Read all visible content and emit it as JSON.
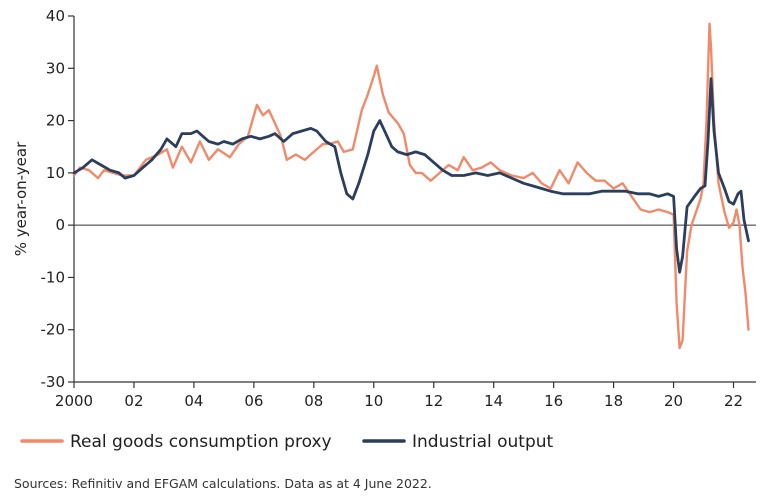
{
  "chart_data": {
    "type": "line",
    "title": "",
    "xlabel": "",
    "ylabel": "% year-on-year",
    "xlim": [
      2000,
      2022.75
    ],
    "ylim": [
      -30,
      40
    ],
    "yticks": [
      40,
      30,
      20,
      10,
      0,
      -10,
      -20,
      -30
    ],
    "ytick_labels": [
      "40",
      "30",
      "20",
      "10",
      "0",
      "-10",
      "-20",
      "-30"
    ],
    "xticks": [
      2000,
      2002,
      2004,
      2006,
      2008,
      2010,
      2012,
      2014,
      2016,
      2018,
      2020,
      2022
    ],
    "xtick_labels": [
      "2000",
      "02",
      "04",
      "06",
      "08",
      "10",
      "12",
      "14",
      "16",
      "18",
      "20",
      "22"
    ],
    "grid": false,
    "legend_position": "bottom-left",
    "series": [
      {
        "name": "Real goods consumption proxy",
        "color": "#f08a6a",
        "points": [
          [
            2000.0,
            9.5
          ],
          [
            2000.2,
            11.0
          ],
          [
            2000.5,
            10.5
          ],
          [
            2000.8,
            9.0
          ],
          [
            2001.0,
            10.5
          ],
          [
            2001.3,
            10.0
          ],
          [
            2001.6,
            9.5
          ],
          [
            2002.0,
            9.5
          ],
          [
            2002.4,
            12.5
          ],
          [
            2002.8,
            13.5
          ],
          [
            2003.1,
            14.5
          ],
          [
            2003.3,
            11.0
          ],
          [
            2003.6,
            15.0
          ],
          [
            2003.9,
            12.0
          ],
          [
            2004.2,
            16.0
          ],
          [
            2004.5,
            12.5
          ],
          [
            2004.8,
            14.5
          ],
          [
            2005.2,
            13.0
          ],
          [
            2005.5,
            15.5
          ],
          [
            2005.8,
            17.0
          ],
          [
            2006.1,
            23.0
          ],
          [
            2006.3,
            21.0
          ],
          [
            2006.5,
            22.0
          ],
          [
            2006.7,
            19.5
          ],
          [
            2006.9,
            17.0
          ],
          [
            2007.1,
            12.5
          ],
          [
            2007.4,
            13.5
          ],
          [
            2007.7,
            12.5
          ],
          [
            2008.0,
            14.0
          ],
          [
            2008.3,
            15.5
          ],
          [
            2008.5,
            15.5
          ],
          [
            2008.8,
            16.0
          ],
          [
            2009.0,
            14.0
          ],
          [
            2009.3,
            14.5
          ],
          [
            2009.6,
            22.0
          ],
          [
            2009.8,
            25.0
          ],
          [
            2010.0,
            28.5
          ],
          [
            2010.1,
            30.5
          ],
          [
            2010.3,
            25.0
          ],
          [
            2010.5,
            21.5
          ],
          [
            2010.8,
            19.5
          ],
          [
            2011.0,
            17.5
          ],
          [
            2011.2,
            11.5
          ],
          [
            2011.4,
            10.0
          ],
          [
            2011.6,
            10.0
          ],
          [
            2011.9,
            8.5
          ],
          [
            2012.2,
            10.0
          ],
          [
            2012.5,
            11.5
          ],
          [
            2012.8,
            10.5
          ],
          [
            2013.0,
            13.0
          ],
          [
            2013.3,
            10.5
          ],
          [
            2013.6,
            11.0
          ],
          [
            2013.9,
            12.0
          ],
          [
            2014.2,
            10.5
          ],
          [
            2014.6,
            9.5
          ],
          [
            2015.0,
            9.0
          ],
          [
            2015.3,
            10.0
          ],
          [
            2015.6,
            8.0
          ],
          [
            2015.9,
            7.0
          ],
          [
            2016.2,
            10.5
          ],
          [
            2016.5,
            8.0
          ],
          [
            2016.8,
            12.0
          ],
          [
            2017.1,
            10.0
          ],
          [
            2017.4,
            8.5
          ],
          [
            2017.7,
            8.5
          ],
          [
            2018.0,
            7.0
          ],
          [
            2018.3,
            8.0
          ],
          [
            2018.6,
            5.5
          ],
          [
            2018.9,
            3.0
          ],
          [
            2019.2,
            2.5
          ],
          [
            2019.5,
            3.0
          ],
          [
            2019.8,
            2.5
          ],
          [
            2020.0,
            2.0
          ],
          [
            2020.1,
            -15.0
          ],
          [
            2020.2,
            -23.5
          ],
          [
            2020.3,
            -22.0
          ],
          [
            2020.45,
            -5.0
          ],
          [
            2020.6,
            0.0
          ],
          [
            2020.9,
            5.0
          ],
          [
            2021.0,
            8.0
          ],
          [
            2021.1,
            20.0
          ],
          [
            2021.2,
            38.5
          ],
          [
            2021.25,
            34.0
          ],
          [
            2021.35,
            20.0
          ],
          [
            2021.5,
            8.0
          ],
          [
            2021.7,
            2.5
          ],
          [
            2021.85,
            -0.5
          ],
          [
            2022.0,
            0.5
          ],
          [
            2022.1,
            3.0
          ],
          [
            2022.2,
            0.0
          ],
          [
            2022.3,
            -8.0
          ],
          [
            2022.4,
            -13.0
          ],
          [
            2022.5,
            -20.0
          ]
        ]
      },
      {
        "name": "Industrial output",
        "color": "#2b3f5c",
        "points": [
          [
            2000.0,
            10.0
          ],
          [
            2000.3,
            11.0
          ],
          [
            2000.6,
            12.5
          ],
          [
            2000.9,
            11.5
          ],
          [
            2001.2,
            10.5
          ],
          [
            2001.5,
            10.0
          ],
          [
            2001.7,
            9.0
          ],
          [
            2002.0,
            9.5
          ],
          [
            2002.3,
            11.0
          ],
          [
            2002.6,
            12.5
          ],
          [
            2002.9,
            14.5
          ],
          [
            2003.1,
            16.5
          ],
          [
            2003.4,
            15.0
          ],
          [
            2003.6,
            17.5
          ],
          [
            2003.9,
            17.5
          ],
          [
            2004.1,
            18.0
          ],
          [
            2004.3,
            17.0
          ],
          [
            2004.5,
            16.0
          ],
          [
            2004.8,
            15.5
          ],
          [
            2005.0,
            16.0
          ],
          [
            2005.3,
            15.5
          ],
          [
            2005.6,
            16.5
          ],
          [
            2005.9,
            17.0
          ],
          [
            2006.2,
            16.5
          ],
          [
            2006.5,
            17.0
          ],
          [
            2006.7,
            17.5
          ],
          [
            2007.0,
            16.0
          ],
          [
            2007.3,
            17.5
          ],
          [
            2007.6,
            18.0
          ],
          [
            2007.9,
            18.5
          ],
          [
            2008.1,
            18.0
          ],
          [
            2008.4,
            16.0
          ],
          [
            2008.7,
            15.0
          ],
          [
            2008.9,
            10.0
          ],
          [
            2009.1,
            6.0
          ],
          [
            2009.3,
            5.0
          ],
          [
            2009.5,
            8.0
          ],
          [
            2009.8,
            13.5
          ],
          [
            2010.0,
            18.0
          ],
          [
            2010.2,
            20.0
          ],
          [
            2010.4,
            17.5
          ],
          [
            2010.6,
            15.0
          ],
          [
            2010.8,
            14.0
          ],
          [
            2011.1,
            13.5
          ],
          [
            2011.4,
            14.0
          ],
          [
            2011.7,
            13.5
          ],
          [
            2012.0,
            12.0
          ],
          [
            2012.3,
            10.5
          ],
          [
            2012.6,
            9.5
          ],
          [
            2013.0,
            9.5
          ],
          [
            2013.4,
            10.0
          ],
          [
            2013.8,
            9.5
          ],
          [
            2014.2,
            10.0
          ],
          [
            2014.6,
            9.0
          ],
          [
            2015.0,
            8.0
          ],
          [
            2015.3,
            7.5
          ],
          [
            2015.6,
            7.0
          ],
          [
            2015.9,
            6.5
          ],
          [
            2016.3,
            6.0
          ],
          [
            2016.6,
            6.0
          ],
          [
            2016.9,
            6.0
          ],
          [
            2017.2,
            6.0
          ],
          [
            2017.6,
            6.5
          ],
          [
            2018.0,
            6.5
          ],
          [
            2018.4,
            6.5
          ],
          [
            2018.8,
            6.0
          ],
          [
            2019.2,
            6.0
          ],
          [
            2019.5,
            5.5
          ],
          [
            2019.8,
            6.0
          ],
          [
            2020.0,
            5.5
          ],
          [
            2020.1,
            -4.5
          ],
          [
            2020.2,
            -9.0
          ],
          [
            2020.3,
            -6.0
          ],
          [
            2020.45,
            3.5
          ],
          [
            2020.7,
            5.5
          ],
          [
            2020.9,
            7.0
          ],
          [
            2021.05,
            7.5
          ],
          [
            2021.15,
            16.0
          ],
          [
            2021.25,
            28.0
          ],
          [
            2021.35,
            18.0
          ],
          [
            2021.5,
            10.0
          ],
          [
            2021.7,
            7.0
          ],
          [
            2021.85,
            4.5
          ],
          [
            2022.0,
            4.0
          ],
          [
            2022.15,
            6.0
          ],
          [
            2022.25,
            6.5
          ],
          [
            2022.35,
            1.0
          ],
          [
            2022.5,
            -3.0
          ]
        ]
      }
    ]
  },
  "source": "Sources: Refinitiv and EFGAM calculations. Data as at 4 June 2022."
}
